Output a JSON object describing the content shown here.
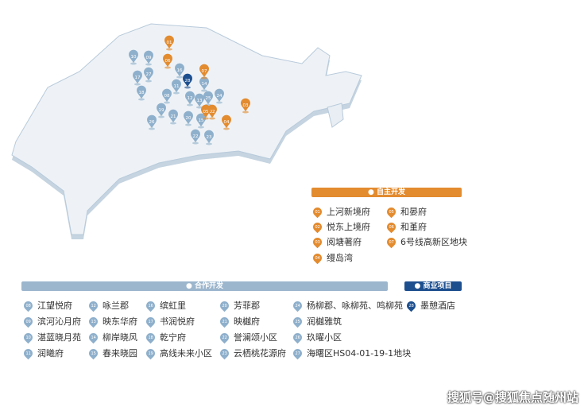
{
  "colors": {
    "self": "#e38b2f",
    "coop": "#8fb0cc",
    "commercial": "#1d4f8f"
  },
  "legend": {
    "self": {
      "title": "自主开发",
      "items": [
        [
          "01",
          "上河新境府"
        ],
        [
          "02",
          "悦东上境府"
        ],
        [
          "03",
          "阅塘著府"
        ],
        [
          "04",
          "缦岛湾"
        ],
        [
          "05",
          "和晏府"
        ],
        [
          "06",
          "和堇府"
        ],
        [
          "07",
          "6号线高新区地块"
        ]
      ]
    },
    "coop": {
      "title": "合作开发",
      "items": [
        [
          "08",
          "江望悦府"
        ],
        [
          "09",
          "滨河沁月府"
        ],
        [
          "10",
          "湛蓝晓月苑"
        ],
        [
          "11",
          "润曦府"
        ],
        [
          "12",
          "咏兰郡"
        ],
        [
          "13",
          "映东华府"
        ],
        [
          "14",
          "柳岸晓风"
        ],
        [
          "15",
          "春来晓园"
        ],
        [
          "16",
          "缤虹里"
        ],
        [
          "17",
          "书润悦府"
        ],
        [
          "18",
          "乾宁府"
        ],
        [
          "19",
          "高线未来小区"
        ],
        [
          "20",
          "芳菲郡"
        ],
        [
          "21",
          "映樾府"
        ],
        [
          "22",
          "誉澜颂小区"
        ],
        [
          "23",
          "云栖桃花源府"
        ],
        [
          "24",
          "杨柳郡、咏柳苑、鸣柳苑"
        ],
        [
          "25",
          "润樾雅筑"
        ],
        [
          "26",
          "玖曜小区"
        ],
        [
          "27",
          "海曙区HS04-01-19-1地块"
        ]
      ]
    },
    "commercial": {
      "title": "商业项目",
      "items": [
        [
          "28",
          "墨憩酒店"
        ]
      ]
    }
  },
  "watermark": "搜狐号@搜狐焦点随州站"
}
